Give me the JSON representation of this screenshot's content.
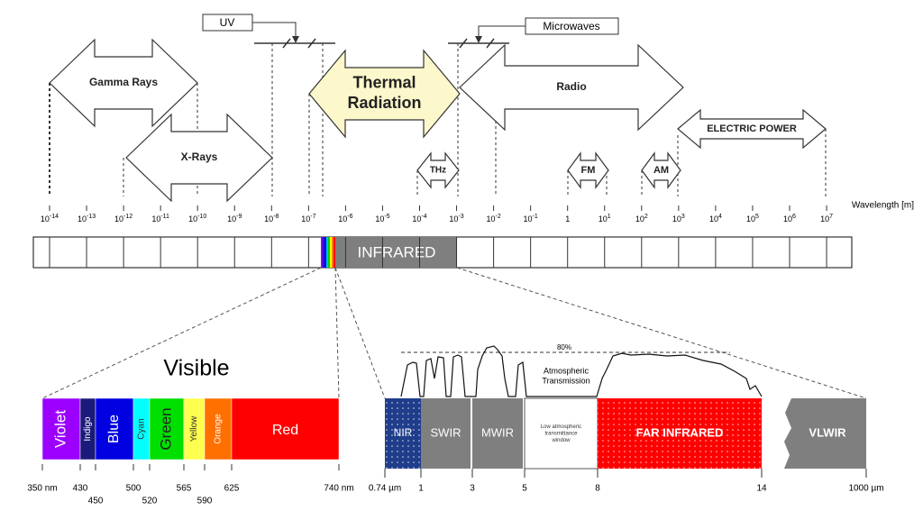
{
  "bands": [
    {
      "lines": [
        "Gamma Rays"
      ]
    },
    {
      "lines": [
        "X-Rays"
      ]
    },
    {
      "lines": [
        "Thermal",
        "Radiation"
      ]
    },
    {
      "lines": [
        "Radio"
      ]
    },
    {
      "lines": [
        "THz"
      ]
    },
    {
      "lines": [
        "FM"
      ]
    },
    {
      "lines": [
        "AM"
      ]
    },
    {
      "lines": [
        "ELECTRIC POWER"
      ]
    }
  ],
  "uv": "UV",
  "microwaves": "Microwaves",
  "axis_label": "Wavelength [m]",
  "wavelength_ticks": [
    {
      "text": "10",
      "sup": "-14"
    },
    {
      "text": "10",
      "sup": "-13"
    },
    {
      "text": "10",
      "sup": "-12"
    },
    {
      "text": "10",
      "sup": "-11"
    },
    {
      "text": "10",
      "sup": "-10"
    },
    {
      "text": "10",
      "sup": "-9"
    },
    {
      "text": "10",
      "sup": "-8"
    },
    {
      "text": "10",
      "sup": "-7"
    },
    {
      "text": "10",
      "sup": "-6"
    },
    {
      "text": "10",
      "sup": "-5"
    },
    {
      "text": "10",
      "sup": "-4"
    },
    {
      "text": "10",
      "sup": "-3"
    },
    {
      "text": "10",
      "sup": "-2"
    },
    {
      "text": "10",
      "sup": "-1"
    },
    {
      "text": "1"
    },
    {
      "text": "10",
      "sup": "1"
    },
    {
      "text": "10",
      "sup": "2"
    },
    {
      "text": "10",
      "sup": "3"
    },
    {
      "text": "10",
      "sup": "4"
    },
    {
      "text": "10",
      "sup": "5"
    },
    {
      "text": "10",
      "sup": "6"
    },
    {
      "text": "10",
      "sup": "7"
    }
  ],
  "infrared": "INFRARED",
  "visible": {
    "title": "Visible",
    "colors": [
      "Violet",
      "Indigo",
      "Blue",
      "Cyan",
      "Green",
      "Yellow",
      "Orange",
      "Red"
    ],
    "ticks": [
      "350 nm",
      "430",
      "450",
      "500",
      "520",
      "565",
      "590",
      "625",
      "740 nm"
    ]
  },
  "infrared_detail": {
    "segments": [
      {
        "lines": [
          "NIR"
        ]
      },
      {
        "lines": [
          "SWIR"
        ]
      },
      {
        "lines": [
          "MWIR"
        ]
      },
      {
        "lines": [
          "Low atmospheric",
          "transmittance",
          "window"
        ]
      },
      {
        "lines": [
          "FAR INFRARED"
        ]
      },
      {
        "lines": [
          "VLWIR"
        ]
      }
    ],
    "ticks": [
      "0.74 µm",
      "1",
      "3",
      "5",
      "8",
      "14",
      "1000 µm"
    ],
    "max_label": "80%",
    "transmission": [
      "Atmospheric",
      "Transmission"
    ]
  }
}
